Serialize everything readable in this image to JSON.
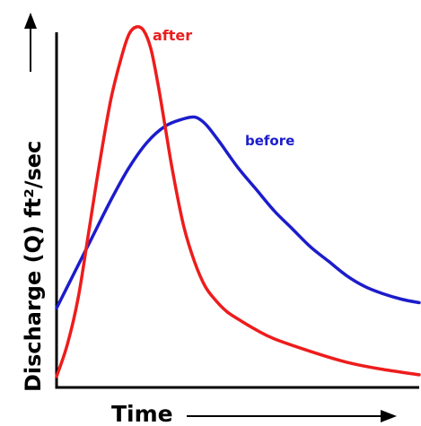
{
  "chart_data": {
    "type": "line",
    "title": "",
    "xlabel": "Time",
    "ylabel": "Discharge (Q) ft²/sec",
    "xlim": [
      0,
      100
    ],
    "ylim": [
      0,
      100
    ],
    "grid": false,
    "legend": "inline labels",
    "x_ticks": [],
    "y_ticks": [],
    "series": [
      {
        "name": "after",
        "color": "#ee1c1c",
        "x": [
          0,
          3,
          6,
          9,
          12,
          15,
          18,
          20,
          22,
          24,
          26,
          28,
          30,
          32,
          35,
          38,
          41,
          44,
          47,
          50,
          55,
          60,
          70,
          80,
          90,
          100
        ],
        "y": [
          3,
          12,
          25,
          44,
          63,
          80,
          92,
          98,
          100,
          99,
          94,
          84,
          72,
          60,
          45,
          35,
          28,
          24,
          21,
          19,
          16,
          13.5,
          10,
          7,
          5,
          3.5
        ]
      },
      {
        "name": "before",
        "color": "#1c1ccc",
        "x": [
          0,
          5,
          10,
          15,
          20,
          25,
          30,
          35,
          38,
          40,
          42,
          45,
          50,
          55,
          60,
          65,
          70,
          75,
          80,
          85,
          90,
          95,
          100
        ],
        "y": [
          22,
          32,
          42,
          52,
          61,
          68,
          72.5,
          74.5,
          75,
          74,
          72,
          68,
          61,
          55,
          49,
          44,
          39,
          35,
          31,
          28,
          26,
          24.5,
          23.5
        ]
      }
    ]
  }
}
